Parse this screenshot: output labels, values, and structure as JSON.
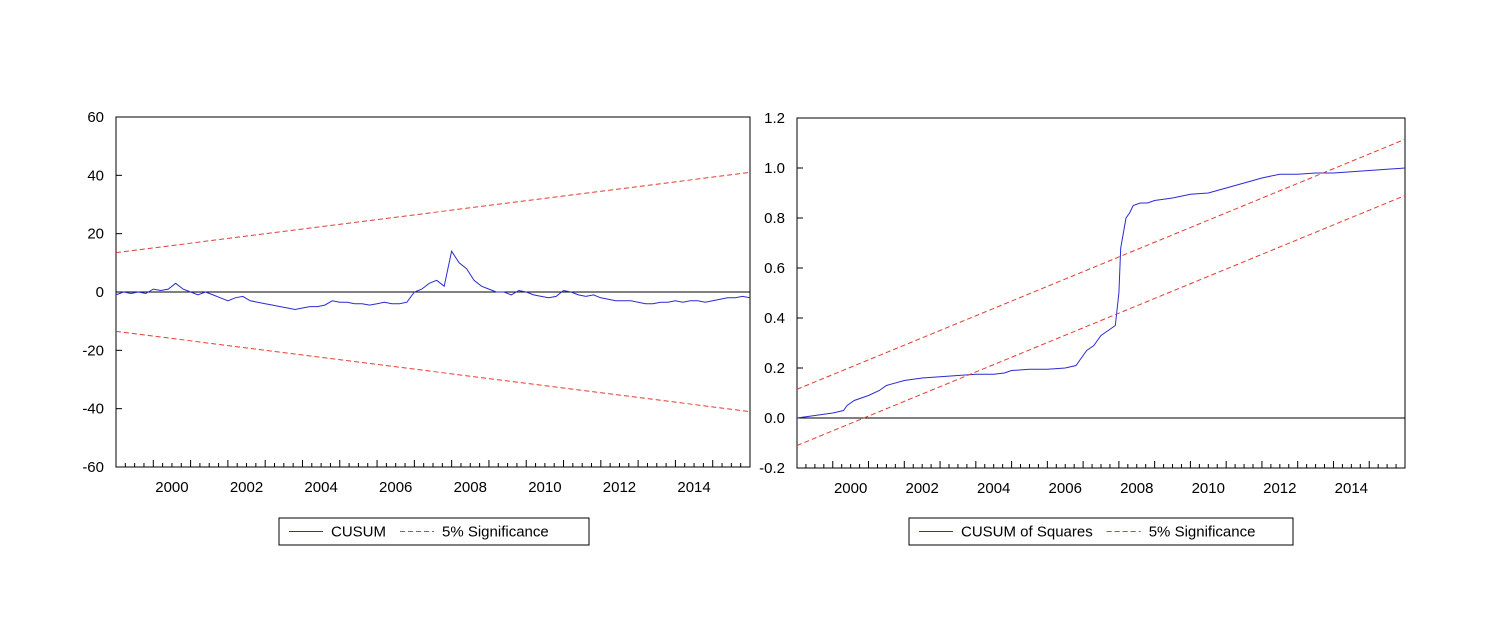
{
  "colors": {
    "series": "#2b2bd4",
    "band": "#e03c32",
    "zero": "#000000",
    "frame": "#000000"
  },
  "chart_data": [
    {
      "type": "line",
      "title": "",
      "xlabel": "",
      "ylabel": "",
      "xlim": [
        1999.0,
        2016.0
      ],
      "ylim": [
        -60,
        60
      ],
      "y_ticks": [
        "60",
        "40",
        "20",
        "0",
        "-20",
        "-40",
        "-60"
      ],
      "y_tick_values": [
        60,
        40,
        20,
        0,
        -20,
        -40,
        -60
      ],
      "x_ticks": [
        "2000",
        "2002",
        "2004",
        "2006",
        "2008",
        "2010",
        "2012",
        "2014"
      ],
      "x_tick_values": [
        2000,
        2002,
        2004,
        2006,
        2008,
        2010,
        2012,
        2014
      ],
      "zero_line": 0,
      "legend": {
        "position": "bottom-center",
        "items": [
          "CUSUM",
          "5% Significance"
        ]
      },
      "series": [
        {
          "name": "CUSUM",
          "style": "solid",
          "x": [
            1999.0,
            1999.2,
            1999.4,
            1999.6,
            1999.8,
            2000.0,
            2000.2,
            2000.4,
            2000.6,
            2000.8,
            2001.0,
            2001.2,
            2001.4,
            2001.6,
            2001.8,
            2002.0,
            2002.2,
            2002.4,
            2002.6,
            2002.8,
            2003.0,
            2003.2,
            2003.4,
            2003.6,
            2003.8,
            2004.0,
            2004.2,
            2004.4,
            2004.6,
            2004.8,
            2005.0,
            2005.2,
            2005.4,
            2005.6,
            2005.8,
            2006.0,
            2006.2,
            2006.4,
            2006.6,
            2006.8,
            2007.0,
            2007.2,
            2007.4,
            2007.6,
            2007.8,
            2008.0,
            2008.2,
            2008.4,
            2008.6,
            2008.8,
            2009.0,
            2009.2,
            2009.4,
            2009.6,
            2009.8,
            2010.0,
            2010.2,
            2010.4,
            2010.6,
            2010.8,
            2011.0,
            2011.2,
            2011.4,
            2011.6,
            2011.8,
            2012.0,
            2012.2,
            2012.4,
            2012.6,
            2012.8,
            2013.0,
            2013.2,
            2013.4,
            2013.6,
            2013.8,
            2014.0,
            2014.2,
            2014.4,
            2014.6,
            2014.8,
            2015.0,
            2015.2,
            2015.4,
            2015.6,
            2015.8,
            2016.0
          ],
          "y": [
            -1,
            0,
            -0.5,
            0,
            -0.5,
            1,
            0.5,
            1,
            3,
            1,
            0,
            -1,
            0,
            -1,
            -2,
            -3,
            -2,
            -1.5,
            -3,
            -3.5,
            -4,
            -4.5,
            -5,
            -5.5,
            -6,
            -5.5,
            -5,
            -5,
            -4.5,
            -3,
            -3.5,
            -3.5,
            -4,
            -4,
            -4.5,
            -4,
            -3.5,
            -4,
            -4,
            -3.5,
            0,
            1,
            3,
            4,
            2,
            14,
            10,
            8,
            4,
            2,
            1,
            0,
            0,
            -1,
            0.5,
            0,
            -1,
            -1.5,
            -2,
            -1.5,
            0.5,
            0,
            -1,
            -1.5,
            -1,
            -2,
            -2.5,
            -3,
            -3,
            -3,
            -3.5,
            -4,
            -4,
            -3.5,
            -3.5,
            -3,
            -3.5,
            -3,
            -3,
            -3.5,
            -3,
            -2.5,
            -2,
            -2,
            -1.5,
            -2
          ]
        },
        {
          "name": "5% Significance",
          "style": "dashed",
          "x": [
            1999.0,
            2016.0
          ],
          "y": [
            13.5,
            41
          ]
        },
        {
          "name": "5% Significance",
          "style": "dashed",
          "x": [
            1999.0,
            2016.0
          ],
          "y": [
            -13.5,
            -41
          ]
        }
      ]
    },
    {
      "type": "line",
      "title": "",
      "xlabel": "",
      "ylabel": "",
      "xlim": [
        1999.0,
        2016.0
      ],
      "ylim": [
        -0.2,
        1.2
      ],
      "y_ticks": [
        "1.2",
        "1.0",
        "0.8",
        "0.6",
        "0.4",
        "0.2",
        "0.0",
        "-0.2"
      ],
      "y_tick_values": [
        1.2,
        1.0,
        0.8,
        0.6,
        0.4,
        0.2,
        0.0,
        -0.2
      ],
      "x_ticks": [
        "2000",
        "2002",
        "2004",
        "2006",
        "2008",
        "2010",
        "2012",
        "2014"
      ],
      "x_tick_values": [
        2000,
        2002,
        2004,
        2006,
        2008,
        2010,
        2012,
        2014
      ],
      "zero_line": 0,
      "legend": {
        "position": "bottom-center",
        "items": [
          "CUSUM of Squares",
          "5% Significance"
        ]
      },
      "series": [
        {
          "name": "CUSUM of Squares",
          "style": "solid",
          "x": [
            1999.0,
            1999.5,
            2000.0,
            2000.3,
            2000.4,
            2000.6,
            2001.0,
            2001.3,
            2001.5,
            2002.0,
            2002.5,
            2003.0,
            2003.5,
            2004.0,
            2004.5,
            2004.8,
            2005.0,
            2005.5,
            2006.0,
            2006.5,
            2006.8,
            2007.0,
            2007.1,
            2007.3,
            2007.5,
            2007.7,
            2007.9,
            2008.0,
            2008.05,
            2008.1,
            2008.2,
            2008.3,
            2008.4,
            2008.6,
            2008.8,
            2009.0,
            2009.5,
            2010.0,
            2010.5,
            2011.0,
            2011.5,
            2012.0,
            2012.5,
            2013.0,
            2013.5,
            2014.0,
            2014.5,
            2015.0,
            2015.5,
            2016.0
          ],
          "y": [
            0.0,
            0.01,
            0.02,
            0.03,
            0.05,
            0.07,
            0.09,
            0.11,
            0.13,
            0.15,
            0.16,
            0.165,
            0.17,
            0.175,
            0.175,
            0.18,
            0.19,
            0.195,
            0.195,
            0.2,
            0.21,
            0.25,
            0.27,
            0.29,
            0.33,
            0.35,
            0.37,
            0.5,
            0.68,
            0.72,
            0.8,
            0.82,
            0.85,
            0.86,
            0.86,
            0.87,
            0.88,
            0.895,
            0.9,
            0.92,
            0.94,
            0.96,
            0.975,
            0.975,
            0.98,
            0.98,
            0.985,
            0.99,
            0.995,
            1.0
          ]
        },
        {
          "name": "5% Significance",
          "style": "dashed",
          "x": [
            1999.0,
            2016.0
          ],
          "y": [
            0.115,
            1.115
          ]
        },
        {
          "name": "5% Significance",
          "style": "dashed",
          "x": [
            1999.0,
            2016.0
          ],
          "y": [
            -0.11,
            0.89
          ]
        }
      ]
    }
  ]
}
